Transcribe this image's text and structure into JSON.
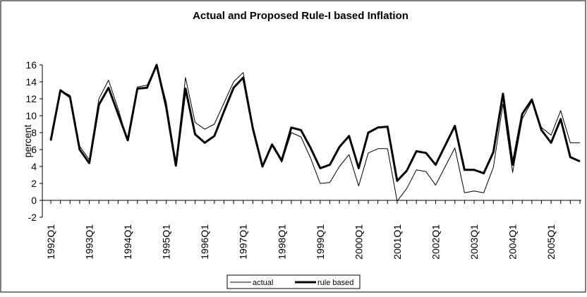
{
  "chart_data": {
    "type": "line",
    "title": "Actual and Proposed Rule-I based Inflation",
    "y_label": "percent",
    "categories": [
      "1992Q1",
      null,
      null,
      null,
      "1993Q1",
      null,
      null,
      null,
      "1994Q1",
      null,
      null,
      null,
      "1995Q1",
      null,
      null,
      null,
      "1996Q1",
      null,
      null,
      null,
      "1997Q1",
      null,
      null,
      null,
      "1998Q1",
      null,
      null,
      null,
      "1999Q1",
      null,
      null,
      null,
      "2000Q1",
      null,
      null,
      null,
      "2001Q1",
      null,
      null,
      null,
      "2002Q1",
      null,
      null,
      null,
      "2003Q1",
      null,
      null,
      null,
      "2004Q1",
      null,
      null,
      null,
      "2005Q1",
      null,
      null,
      null
    ],
    "series": [
      {
        "name": "actual",
        "color": "#000000",
        "width": 1,
        "values": [
          7.0,
          13.0,
          12.4,
          6.4,
          4.8,
          12.0,
          14.2,
          10.8,
          7.0,
          13.4,
          13.6,
          16.0,
          11.6,
          4.5,
          14.5,
          9.2,
          8.4,
          9.0,
          11.5,
          14.0,
          15.1,
          8.8,
          4.0,
          6.5,
          4.5,
          8.0,
          7.5,
          5.0,
          2.0,
          2.1,
          4.0,
          5.4,
          1.7,
          5.6,
          6.1,
          6.1,
          -0.1,
          1.4,
          3.6,
          3.4,
          1.8,
          4.0,
          6.2,
          0.9,
          1.1,
          0.9,
          3.9,
          11.4,
          3.3,
          9.6,
          11.7,
          8.6,
          7.7,
          10.6,
          6.8,
          6.8
        ]
      },
      {
        "name": "rule based",
        "color": "#000000",
        "width": 3,
        "values": [
          7.1,
          13.0,
          12.2,
          6.0,
          4.4,
          11.3,
          13.3,
          10.2,
          7.1,
          13.2,
          13.3,
          16.0,
          11.0,
          4.1,
          13.2,
          7.8,
          6.8,
          7.6,
          10.5,
          13.3,
          14.5,
          8.5,
          4.0,
          6.6,
          4.7,
          8.6,
          8.3,
          6.2,
          3.8,
          4.2,
          6.3,
          7.6,
          3.8,
          8.0,
          8.6,
          8.7,
          2.3,
          3.5,
          5.8,
          5.6,
          4.2,
          6.5,
          8.8,
          3.6,
          3.6,
          3.2,
          5.7,
          12.6,
          4.2,
          10.2,
          11.9,
          8.3,
          6.8,
          9.6,
          5.1,
          4.6
        ]
      }
    ],
    "ylim": [
      -2,
      16
    ],
    "yticks": [
      -2,
      0,
      2,
      4,
      6,
      8,
      10,
      12,
      14,
      16
    ],
    "grid": false
  }
}
